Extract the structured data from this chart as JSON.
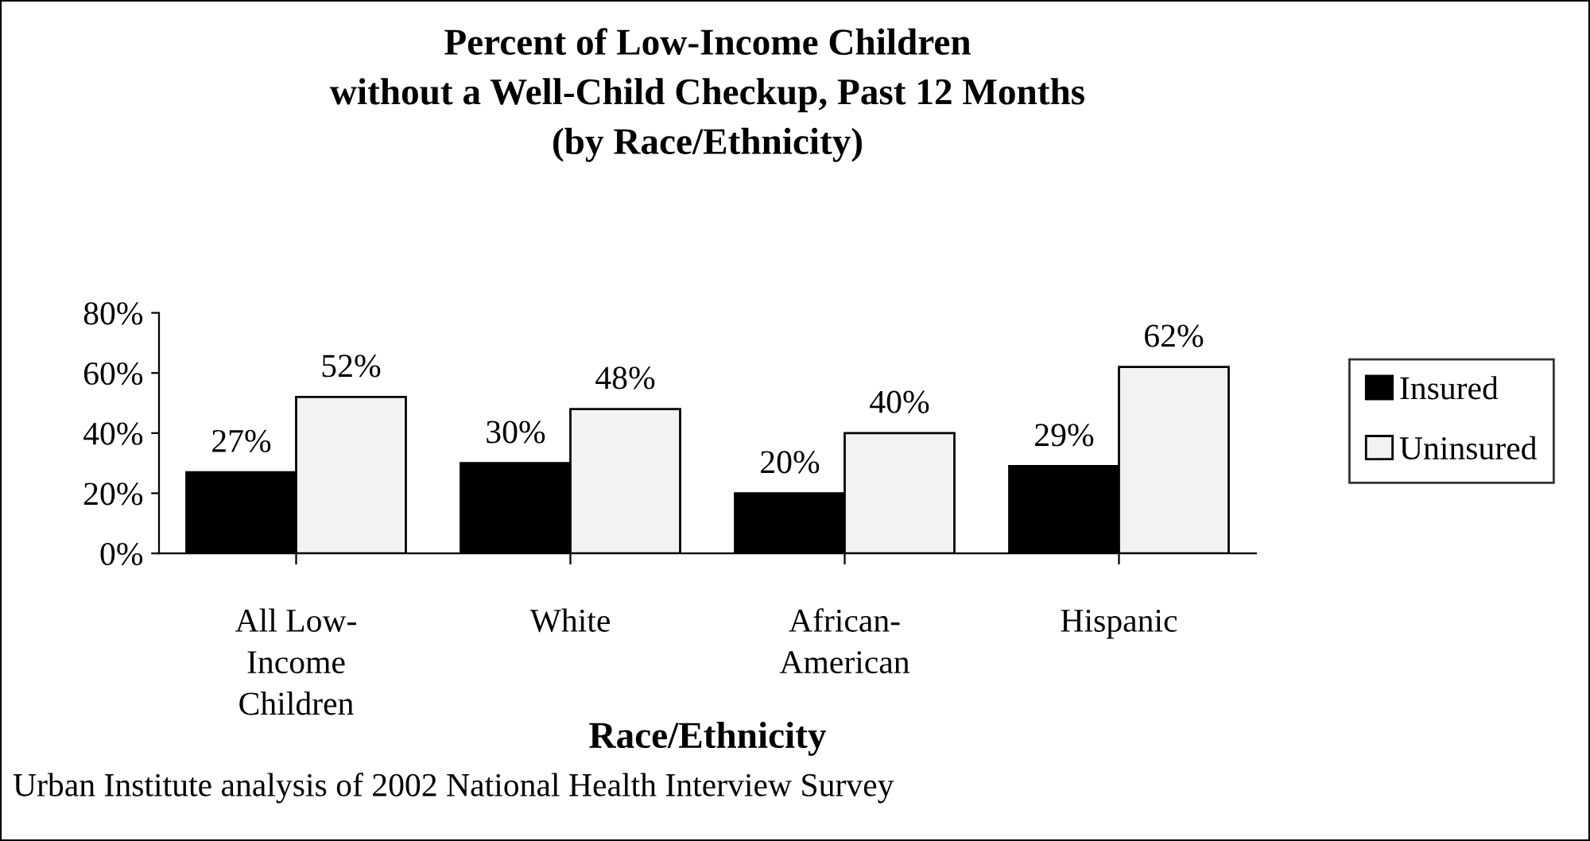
{
  "chart_data": {
    "type": "bar",
    "title": "Percent of Low-Income Children\nwithout a Well-Child Checkup, Past 12 Months\n(by Race/Ethnicity)",
    "xlabel": "Race/Ethnicity",
    "categories": [
      "All Low-\nIncome\nChildren",
      "White",
      "African-\nAmerican",
      "Hispanic"
    ],
    "series": [
      {
        "name": "Insured",
        "color": "#000000",
        "values": [
          27,
          30,
          20,
          29
        ],
        "value_labels": [
          "27%",
          "30%",
          "20%",
          "29%"
        ]
      },
      {
        "name": "Uninsured",
        "color": "#f2f2f2",
        "values": [
          52,
          48,
          40,
          62
        ],
        "value_labels": [
          "52%",
          "48%",
          "40%",
          "62%"
        ]
      }
    ],
    "ylim": [
      0,
      80
    ],
    "yticks": [
      {
        "value": 0,
        "label": "0%"
      },
      {
        "value": 20,
        "label": "20%"
      },
      {
        "value": 40,
        "label": "40%"
      },
      {
        "value": 60,
        "label": "60%"
      },
      {
        "value": 80,
        "label": "80%"
      }
    ],
    "grid": false,
    "legend": "right",
    "annotations": [
      "Urban Institute analysis of 2002 National Health Interview Survey"
    ]
  }
}
